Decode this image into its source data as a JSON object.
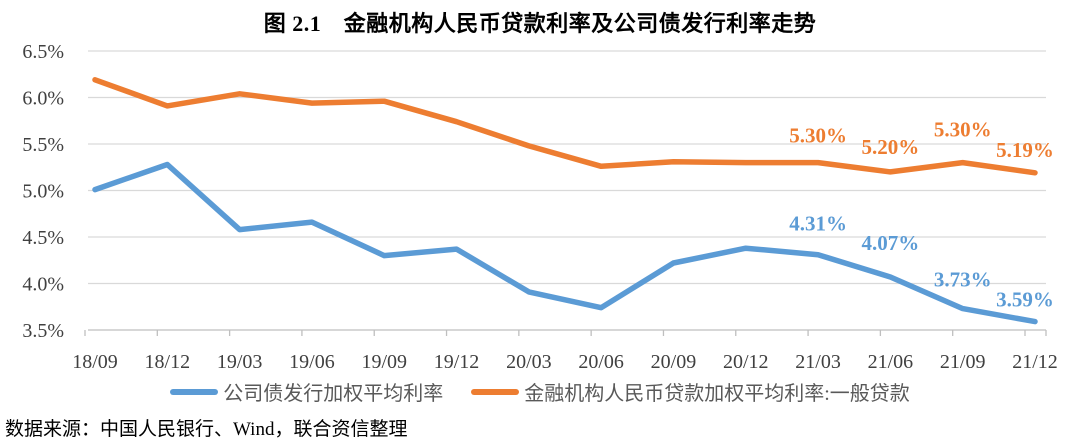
{
  "title": "图 2.1　金融机构人民币贷款利率及公司债发行利率走势",
  "source": "数据来源：中国人民银行、Wind，联合资信整理",
  "colors": {
    "corporate_bond_series": "#5B9BD5",
    "loan_series": "#ED7D31",
    "gridline": "#D9D9D9",
    "axis_line": "#BFBFBF",
    "axis_text": "#404040",
    "legend_text": "#595959"
  },
  "chart_data": {
    "type": "line",
    "title": "图 2.1　金融机构人民币贷款利率及公司债发行利率走势",
    "xlabel": "",
    "ylabel": "",
    "categories": [
      "18/09",
      "18/12",
      "19/03",
      "19/06",
      "19/09",
      "19/12",
      "20/03",
      "20/06",
      "20/09",
      "20/12",
      "21/03",
      "21/06",
      "21/09",
      "21/12"
    ],
    "series": [
      {
        "name": "公司债发行加权平均利率",
        "color": "#5B9BD5",
        "values": [
          5.01,
          5.28,
          4.58,
          4.66,
          4.3,
          4.37,
          3.91,
          3.74,
          4.22,
          4.38,
          4.31,
          4.07,
          3.73,
          3.59
        ],
        "point_labels": [
          {
            "index": 10,
            "text": "4.31%"
          },
          {
            "index": 11,
            "text": "4.07%"
          },
          {
            "index": 12,
            "text": "3.73%"
          },
          {
            "index": 13,
            "text": "3.59%"
          }
        ]
      },
      {
        "name": "金融机构人民币贷款加权平均利率:一般贷款",
        "color": "#ED7D31",
        "values": [
          6.19,
          5.91,
          6.04,
          5.94,
          5.96,
          5.74,
          5.48,
          5.26,
          5.31,
          5.3,
          5.3,
          5.2,
          5.3,
          5.19
        ],
        "point_labels": [
          {
            "index": 10,
            "text": "5.30%"
          },
          {
            "index": 11,
            "text": "5.20%"
          },
          {
            "index": 12,
            "text": "5.30%"
          },
          {
            "index": 13,
            "text": "5.19%"
          }
        ]
      }
    ],
    "ylim": [
      3.5,
      6.5
    ],
    "ytick_step": 0.5,
    "ytick_labels": [
      "6.5%",
      "6.0%",
      "5.5%",
      "5.0%",
      "4.5%",
      "4.0%",
      "3.5%"
    ],
    "grid": true,
    "legend_position": "bottom"
  }
}
